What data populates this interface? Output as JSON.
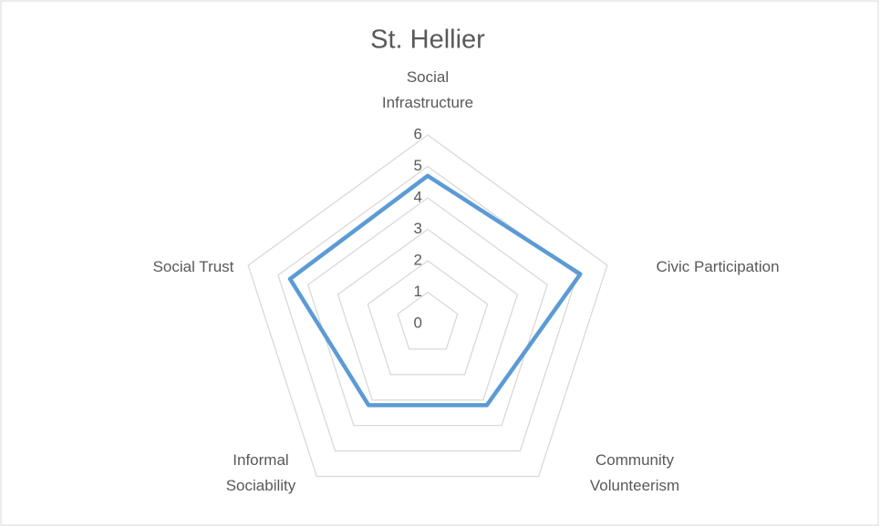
{
  "chart_data": {
    "type": "radar",
    "title": "St. Hellier",
    "categories": [
      "Social Infrastructure",
      "Civic Participation",
      "Community Volunteerism",
      "Informal Sociability",
      "Social Trust"
    ],
    "series": [
      {
        "name": "St. Hellier",
        "color": "#5b9bd5",
        "values": [
          4.7,
          5.1,
          3.2,
          3.2,
          4.6
        ]
      }
    ],
    "ylim": [
      0,
      6
    ],
    "yticks": [
      0,
      1,
      2,
      3,
      4,
      5,
      6
    ],
    "grid": true
  }
}
